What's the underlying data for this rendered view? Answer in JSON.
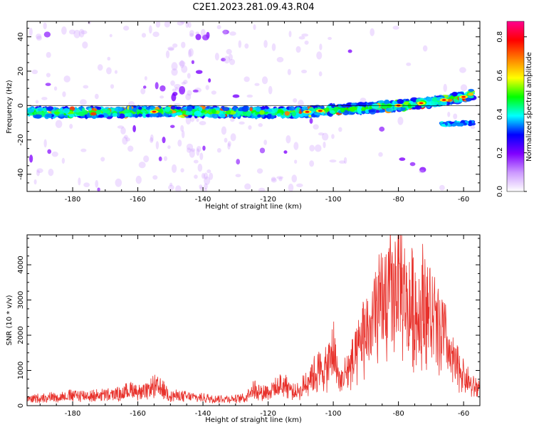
{
  "title": "C2E1.2023.281.09.43.R04",
  "chart_data": [
    {
      "type": "heatmap",
      "xlabel": "Height of straight line (km)",
      "ylabel": "Frequency (Hz)",
      "xlim": [
        -194,
        -55
      ],
      "ylim": [
        -50,
        49
      ],
      "xticks": [
        -180,
        -160,
        -140,
        -120,
        -100,
        -80,
        -60
      ],
      "yticks": [
        -40,
        -20,
        0,
        20,
        40
      ],
      "colorbar": {
        "label": "Normalized spectral amplitude",
        "range": [
          0,
          0.88
        ],
        "ticks": [
          0.0,
          0.2,
          0.4,
          0.6,
          0.8
        ],
        "colormap": [
          "#ffffff",
          "#cc99ff",
          "#8000ff",
          "#0000ff",
          "#00ffff",
          "#00ff00",
          "#ffff00",
          "#ff8000",
          "#ff0000",
          "#ff0090"
        ]
      },
      "features": [
        {
          "description_type": "main_band",
          "x": [
            -194,
            -170,
            -150,
            -130,
            -110,
            -100,
            -90,
            -80,
            -70,
            -60,
            -57
          ],
          "frequency": [
            -4,
            -4,
            -3.5,
            -4,
            -4,
            -2.5,
            -1.5,
            0,
            2,
            5,
            7
          ],
          "peak_amplitude": 0.8
        },
        {
          "description_type": "secondary_band",
          "x": [
            -67,
            -57
          ],
          "frequency": [
            -11,
            -10
          ],
          "peak_amplitude": 0.35
        }
      ]
    },
    {
      "type": "line",
      "xlabel": "Height of straight line (km)",
      "ylabel": "SNR (10 * v/v)",
      "xlim": [
        -194,
        -55
      ],
      "ylim": [
        0,
        4850
      ],
      "xticks": [
        -180,
        -160,
        -140,
        -120,
        -100,
        -80,
        -60
      ],
      "yticks": [
        0,
        1000,
        2000,
        3000,
        4000
      ],
      "color": "#e8312b",
      "series": [
        {
          "x": [
            -194,
            -190,
            -185,
            -180,
            -175,
            -170,
            -165,
            -162,
            -160,
            -158,
            -155,
            -152,
            -150,
            -145,
            -140,
            -135,
            -130,
            -127,
            -125,
            -122,
            -120,
            -117,
            -115,
            -112,
            -110,
            -108,
            -105,
            -102,
            -100,
            -98,
            -95,
            -93,
            -91,
            -89,
            -87,
            -85,
            -83,
            -81,
            -80,
            -79,
            -78,
            -76,
            -74,
            -72,
            -70,
            -68,
            -66,
            -64,
            -62,
            -60,
            -58,
            -56
          ],
          "y": [
            250,
            300,
            350,
            400,
            380,
            420,
            450,
            650,
            550,
            500,
            750,
            600,
            400,
            350,
            300,
            280,
            260,
            300,
            700,
            500,
            600,
            700,
            900,
            500,
            600,
            1000,
            1300,
            1400,
            2200,
            900,
            1500,
            1800,
            2600,
            3000,
            3500,
            3800,
            4300,
            4500,
            4850,
            4600,
            4000,
            3800,
            3600,
            4200,
            3400,
            3000,
            2700,
            1800,
            1500,
            1200,
            800,
            700
          ]
        }
      ]
    }
  ]
}
